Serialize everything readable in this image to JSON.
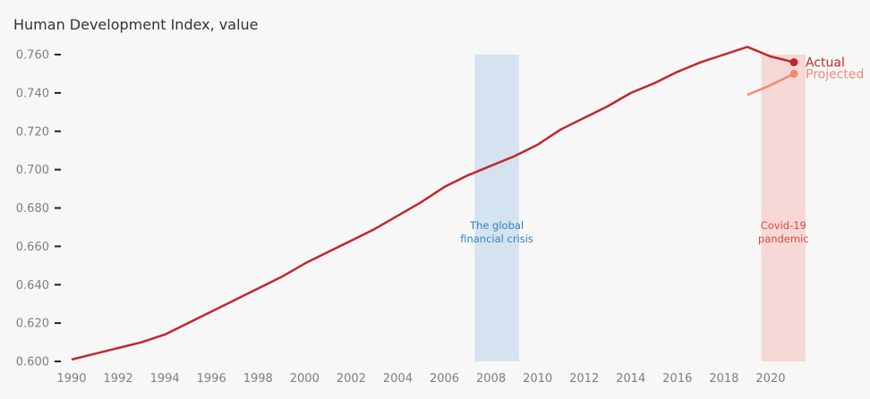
{
  "chart_data": {
    "type": "line",
    "title": "Human Development Index, value",
    "xlabel": "",
    "ylabel": "",
    "xlim": [
      1990,
      2021
    ],
    "ylim": [
      0.6,
      0.76
    ],
    "y_ticks": [
      "0.600",
      "0.620",
      "0.640",
      "0.660",
      "0.680",
      "0.700",
      "0.720",
      "0.740",
      "0.760"
    ],
    "x_ticks": [
      "1990",
      "1992",
      "1994",
      "1996",
      "1998",
      "2000",
      "2002",
      "2004",
      "2006",
      "2008",
      "2010",
      "2012",
      "2014",
      "2016",
      "2018",
      "2020"
    ],
    "grid": false,
    "shaded_periods": [
      {
        "name": "financial-crisis",
        "x_start": 2007.3,
        "x_end": 2009.2,
        "color": "#d4e3ef",
        "label_lines": [
          "The global",
          "financial crisis"
        ],
        "label_color": "#2a86c0"
      },
      {
        "name": "covid-pandemic",
        "x_start": 2019.6,
        "x_end": 2021.5,
        "color": "#f6d9d6",
        "label_lines": [
          "Covid-19",
          "pandemic"
        ],
        "label_color": "#e0473c"
      }
    ],
    "series": [
      {
        "name": "Actual",
        "color": "#c0282d",
        "x": [
          1990,
          1991,
          1992,
          1993,
          1994,
          1995,
          1996,
          1997,
          1998,
          1999,
          2000,
          2001,
          2002,
          2003,
          2004,
          2005,
          2006,
          2007,
          2008,
          2009,
          2010,
          2011,
          2012,
          2013,
          2014,
          2015,
          2016,
          2017,
          2018,
          2019,
          2020,
          2021
        ],
        "values": [
          0.601,
          0.604,
          0.607,
          0.61,
          0.614,
          0.62,
          0.626,
          0.632,
          0.638,
          0.644,
          0.651,
          0.657,
          0.663,
          0.669,
          0.676,
          0.683,
          0.691,
          0.697,
          0.702,
          0.707,
          0.713,
          0.721,
          0.727,
          0.733,
          0.74,
          0.745,
          0.751,
          0.756,
          0.76,
          0.764,
          0.759,
          0.756
        ]
      },
      {
        "name": "Projected",
        "color": "#f08a70",
        "x": [
          2019,
          2020,
          2021
        ],
        "values": [
          0.739,
          0.744,
          0.75
        ]
      }
    ]
  }
}
